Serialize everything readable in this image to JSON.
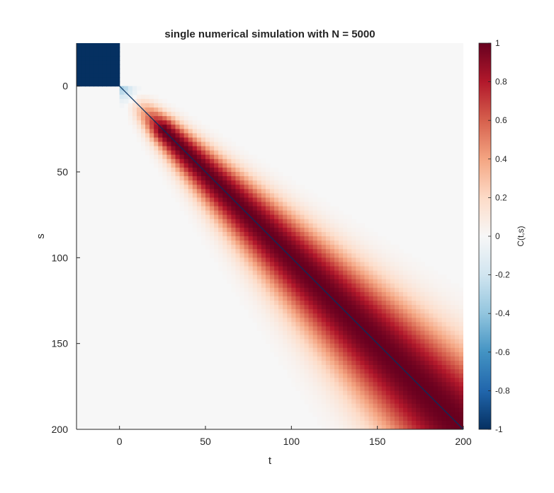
{
  "chart_data": {
    "type": "heatmap",
    "title": "single numerical simulation with N = 5000",
    "xlabel": "t",
    "ylabel": "s",
    "xlim": [
      -25,
      200
    ],
    "ylim": [
      -25,
      200
    ],
    "y_reversed": true,
    "x_ticks": [
      "0",
      "50",
      "100",
      "150",
      "200"
    ],
    "y_ticks": [
      "0",
      "50",
      "100",
      "150",
      "200"
    ],
    "colorbar": {
      "label": "C(t,s)",
      "range": [
        -1,
        1
      ],
      "colormap": "red-white-blue diverging",
      "ticks": [
        "1",
        "0.8",
        "0.6",
        "0.4",
        "0.2",
        "0",
        "-0.2",
        "-0.4",
        "-0.6",
        "-0.8",
        "-1"
      ]
    },
    "grid": false,
    "description_values": {
      "block_region": {
        "t_range": [
          -25,
          0
        ],
        "s_range": [
          -25,
          0
        ],
        "value": -1
      },
      "diagonal_value": -1,
      "band": "positive correlation ~1 near diagonal widening with t"
    },
    "colors": {
      "strong_red": "#67001f",
      "white": "#f7f7f7",
      "strong_blue": "#053061"
    }
  }
}
